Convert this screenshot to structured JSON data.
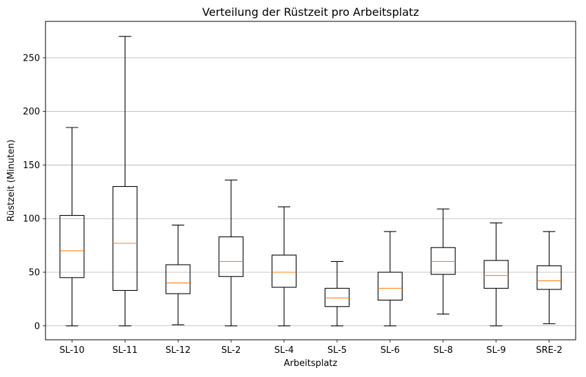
{
  "chart_data": {
    "type": "boxplot",
    "title": "Verteilung der Rüstzeit pro Arbeitsplatz",
    "xlabel": "Arbeitsplatz",
    "ylabel": "Rüstzeit (Minuten)",
    "ylim": [
      -13,
      284
    ],
    "yticks": [
      0,
      50,
      100,
      150,
      200,
      250
    ],
    "grid": "horizontal",
    "colors": {
      "box": "#000000",
      "median": "#ff7f0e",
      "grid": "#b0b0b0"
    },
    "categories": [
      "SL-10",
      "SL-11",
      "SL-12",
      "SL-2",
      "SL-4",
      "SL-5",
      "SL-6",
      "SL-8",
      "SL-9",
      "SRE-2"
    ],
    "boxes": [
      {
        "category": "SL-10",
        "whisker_low": 0,
        "q1": 45,
        "median": 70,
        "q3": 103,
        "whisker_high": 185
      },
      {
        "category": "SL-11",
        "whisker_low": 0,
        "q1": 33,
        "median": 77,
        "q3": 130,
        "whisker_high": 270
      },
      {
        "category": "SL-12",
        "whisker_low": 1,
        "q1": 30,
        "median": 40,
        "q3": 57,
        "whisker_high": 94
      },
      {
        "category": "SL-2",
        "whisker_low": 0,
        "q1": 46,
        "median": 60,
        "q3": 83,
        "whisker_high": 136
      },
      {
        "category": "SL-4",
        "whisker_low": 0,
        "q1": 36,
        "median": 50,
        "q3": 66,
        "whisker_high": 111
      },
      {
        "category": "SL-5",
        "whisker_low": 0,
        "q1": 18,
        "median": 26,
        "q3": 35,
        "whisker_high": 60
      },
      {
        "category": "SL-6",
        "whisker_low": 0,
        "q1": 24,
        "median": 35,
        "q3": 50,
        "whisker_high": 88
      },
      {
        "category": "SL-8",
        "whisker_low": 11,
        "q1": 48,
        "median": 60,
        "q3": 73,
        "whisker_high": 109
      },
      {
        "category": "SL-9",
        "whisker_low": 0,
        "q1": 35,
        "median": 47,
        "q3": 61,
        "whisker_high": 96
      },
      {
        "category": "SRE-2",
        "whisker_low": 2,
        "q1": 34,
        "median": 42,
        "q3": 56,
        "whisker_high": 88
      }
    ]
  }
}
